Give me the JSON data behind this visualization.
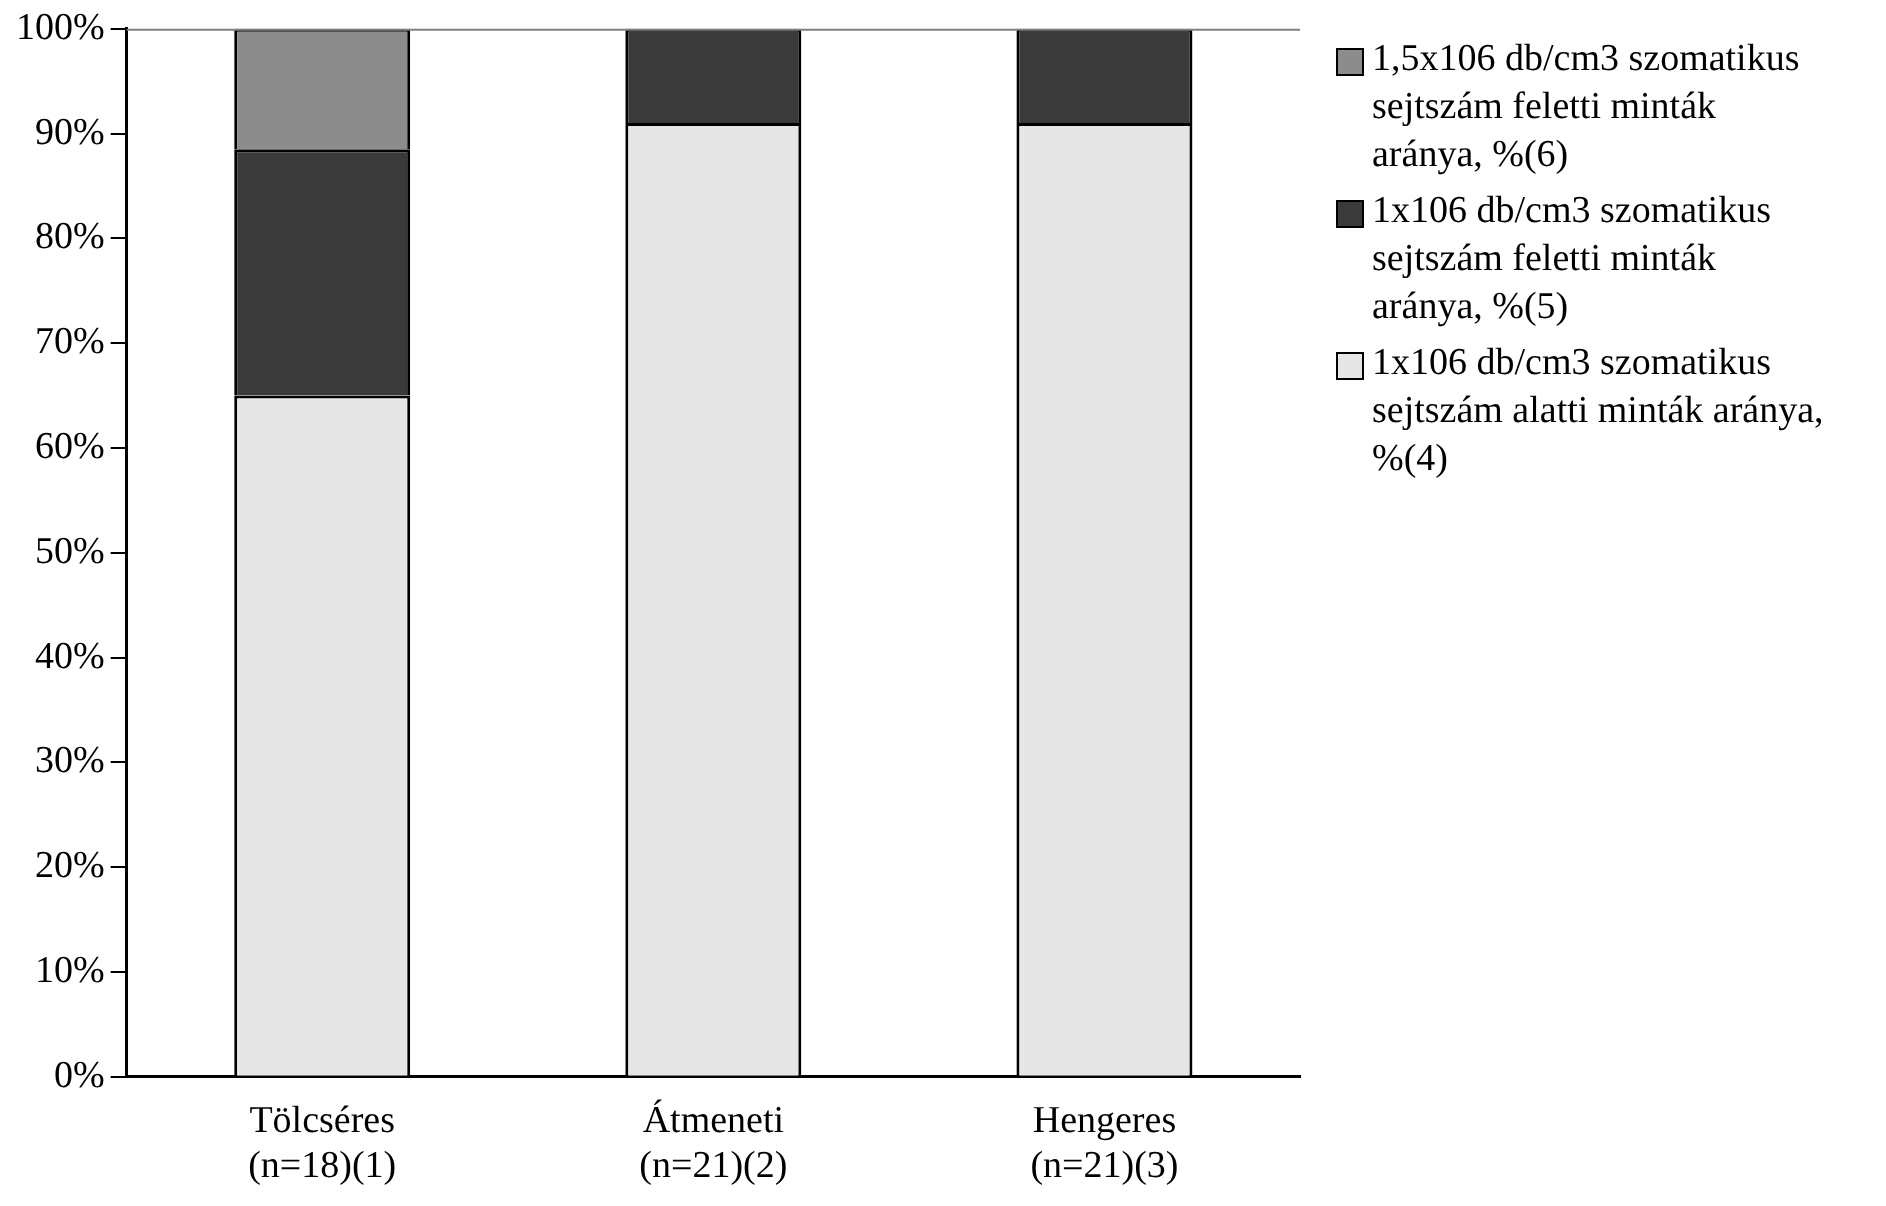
{
  "chart_data": {
    "type": "bar",
    "stacked": true,
    "categories": [
      "Tölcséres\n(n=18)(1)",
      "Átmeneti\n(n=21)(2)",
      "Hengeres\n(n=21)(3)"
    ],
    "series": [
      {
        "name": "1x106 db/cm3 szomatikus sejtszám alatti minták aránya, %(4)",
        "color": "#e6e6e6",
        "values": [
          65,
          91,
          91
        ]
      },
      {
        "name": "1x106 db/cm3 szomatikus sejtszám feletti minták aránya, %(5)",
        "color": "#3a3a3a",
        "values": [
          23.5,
          9,
          9
        ]
      },
      {
        "name": "1,5x106 db/cm3 szomatikus sejtszám feletti minták aránya, %(6)",
        "color": "#8c8c8c",
        "values": [
          11.5,
          0,
          0
        ]
      }
    ],
    "ylim": [
      0,
      100
    ],
    "yticks": [
      {
        "value": 0,
        "label": "0%"
      },
      {
        "value": 10,
        "label": "10%"
      },
      {
        "value": 20,
        "label": "20%"
      },
      {
        "value": 30,
        "label": "30%"
      },
      {
        "value": 40,
        "label": "40%"
      },
      {
        "value": 50,
        "label": "50%"
      },
      {
        "value": 60,
        "label": "60%"
      },
      {
        "value": 70,
        "label": "70%"
      },
      {
        "value": 80,
        "label": "80%"
      },
      {
        "value": 90,
        "label": "90%"
      },
      {
        "value": 100,
        "label": "100%"
      }
    ],
    "grid": false,
    "legend": "right"
  }
}
